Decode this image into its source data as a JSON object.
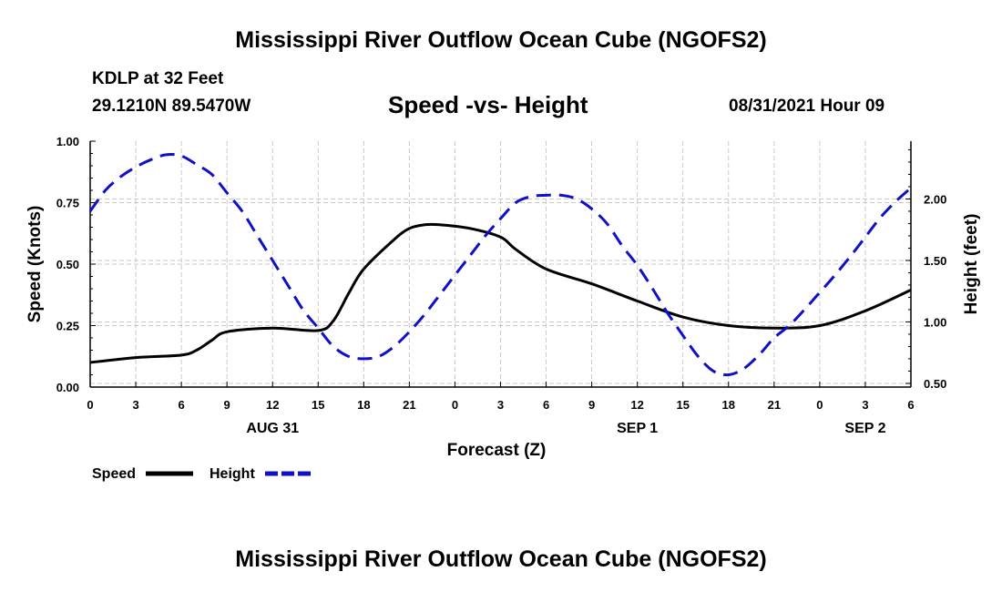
{
  "header": {
    "title": "Mississippi River Outflow Ocean Cube (NGOFS2)",
    "station": "KDLP at 32 Feet",
    "coords": "29.1210N  89.5470W",
    "subtitle": "Speed -vs- Height",
    "datetime": "08/31/2021 Hour 09"
  },
  "footer": {
    "title": "Mississippi River Outflow Ocean Cube (NGOFS2)"
  },
  "chart_data": {
    "type": "line",
    "xlabel": "Forecast (Z)",
    "ylabel_left": "Speed (Knots)",
    "ylabel_right": "Height (feet)",
    "x_range_hours": [
      0,
      54
    ],
    "x_ticks": [
      {
        "h": 0,
        "label": "0"
      },
      {
        "h": 3,
        "label": "3"
      },
      {
        "h": 6,
        "label": "6"
      },
      {
        "h": 9,
        "label": "9"
      },
      {
        "h": 12,
        "label": "12"
      },
      {
        "h": 15,
        "label": "15"
      },
      {
        "h": 18,
        "label": "18"
      },
      {
        "h": 21,
        "label": "21"
      },
      {
        "h": 24,
        "label": "0"
      },
      {
        "h": 27,
        "label": "3"
      },
      {
        "h": 30,
        "label": "6"
      },
      {
        "h": 33,
        "label": "9"
      },
      {
        "h": 36,
        "label": "12"
      },
      {
        "h": 39,
        "label": "15"
      },
      {
        "h": 42,
        "label": "18"
      },
      {
        "h": 45,
        "label": "21"
      },
      {
        "h": 48,
        "label": "0"
      },
      {
        "h": 51,
        "label": "3"
      },
      {
        "h": 54,
        "label": "6"
      }
    ],
    "day_labels": [
      {
        "h": 12,
        "label": "AUG 31"
      },
      {
        "h": 36,
        "label": "SEP 1"
      },
      {
        "h": 51,
        "label": "SEP 2"
      }
    ],
    "left_axis": {
      "range": [
        0,
        1
      ],
      "ticks": [
        {
          "v": 0,
          "label": "0.00"
        },
        {
          "v": 0.25,
          "label": "0.25"
        },
        {
          "v": 0.5,
          "label": "0.50"
        },
        {
          "v": 0.75,
          "label": "0.75"
        },
        {
          "v": 1,
          "label": "1.00"
        }
      ]
    },
    "right_axis": {
      "range": [
        0.47,
        2.47
      ],
      "ticks": [
        {
          "v": 0.5,
          "label": "0.50"
        },
        {
          "v": 1.0,
          "label": "1.00"
        },
        {
          "v": 1.5,
          "label": "1.50"
        },
        {
          "v": 2.0,
          "label": "2.00"
        }
      ]
    },
    "series": [
      {
        "name": "Speed",
        "axis": "left",
        "color": "#000000",
        "style": "solid",
        "x": [
          0,
          3,
          6,
          7,
          8,
          9,
          12,
          15,
          16,
          17,
          18,
          20,
          21,
          22,
          23,
          25,
          27,
          28,
          30,
          33,
          36,
          39,
          42,
          45,
          48,
          51,
          54
        ],
        "y": [
          0.1,
          0.12,
          0.13,
          0.15,
          0.19,
          0.225,
          0.24,
          0.23,
          0.27,
          0.38,
          0.48,
          0.6,
          0.645,
          0.66,
          0.66,
          0.645,
          0.61,
          0.56,
          0.48,
          0.42,
          0.35,
          0.285,
          0.25,
          0.24,
          0.25,
          0.31,
          0.395
        ]
      },
      {
        "name": "Height",
        "axis": "right",
        "color": "#1010c8",
        "style": "dashed",
        "x": [
          0,
          1,
          2,
          3,
          4,
          5,
          6,
          7,
          8,
          9,
          10,
          11,
          12,
          13,
          14,
          15,
          16,
          17,
          18,
          19,
          20,
          21,
          22,
          23,
          24,
          25,
          26,
          27,
          28,
          29,
          30,
          31,
          32,
          33,
          34,
          35,
          36,
          37,
          38,
          39,
          40,
          41,
          42,
          43,
          44,
          45,
          46,
          47,
          48,
          49,
          50,
          51,
          52,
          53,
          54
        ],
        "y": [
          1.9,
          2.07,
          2.18,
          2.26,
          2.32,
          2.36,
          2.35,
          2.28,
          2.2,
          2.05,
          1.9,
          1.7,
          1.5,
          1.3,
          1.1,
          0.95,
          0.8,
          0.72,
          0.7,
          0.72,
          0.8,
          0.92,
          1.06,
          1.22,
          1.38,
          1.54,
          1.7,
          1.84,
          1.97,
          2.02,
          2.03,
          2.03,
          2.0,
          1.92,
          1.8,
          1.62,
          1.46,
          1.27,
          1.07,
          0.89,
          0.72,
          0.6,
          0.57,
          0.62,
          0.73,
          0.87,
          0.97,
          1.1,
          1.24,
          1.38,
          1.53,
          1.69,
          1.85,
          1.98,
          2.09
        ]
      }
    ],
    "legend": [
      {
        "name": "Speed",
        "color": "#000000",
        "style": "solid"
      },
      {
        "name": "Height",
        "color": "#1010c8",
        "style": "dashed"
      }
    ],
    "legend_position": "bottom-left",
    "grid": true
  }
}
